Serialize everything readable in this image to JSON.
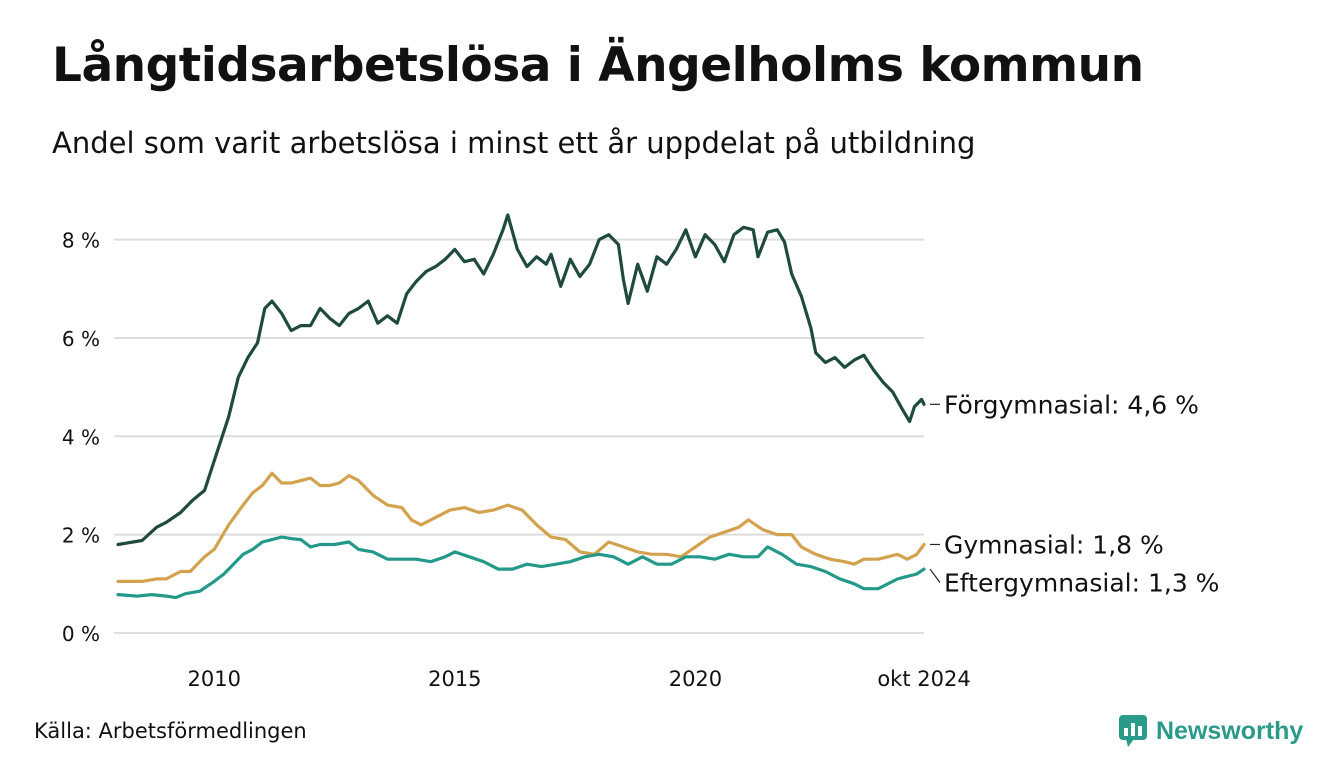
{
  "header": {
    "title": "Långtidsarbetslösa i Ängelholms kommun",
    "subtitle": "Andel som varit arbetslösa i minst ett år uppdelat på utbildning"
  },
  "footer": {
    "source": "Källa: Arbetsförmedlingen",
    "brand": "Newsworthy",
    "brand_color": "#2a9a8a",
    "brand_icon": "chart-speech-bubble-icon"
  },
  "chart_data": {
    "type": "line",
    "x_unit": "year (decimal, monthly data)",
    "xlim": [
      2008.0,
      2024.75
    ],
    "ylim": [
      0,
      8.5
    ],
    "y_ticks": [
      0,
      2,
      4,
      6,
      8
    ],
    "y_tick_labels": [
      "0 %",
      "2 %",
      "4 %",
      "6 %",
      "8 %"
    ],
    "x_ticks": [
      2010,
      2015,
      2020,
      2024.75
    ],
    "x_tick_labels": [
      "2010",
      "2015",
      "2020",
      "okt 2024"
    ],
    "grid": "horizontal",
    "legend": "end-labels",
    "series": [
      {
        "name": "Förgymnasial",
        "end_label": "Förgymnasial: 4,6 %",
        "color": "#1f4a3f",
        "points": [
          [
            2008.0,
            1.8
          ],
          [
            2008.5,
            1.88
          ],
          [
            2008.8,
            2.15
          ],
          [
            2009.0,
            2.25
          ],
          [
            2009.3,
            2.45
          ],
          [
            2009.55,
            2.7
          ],
          [
            2009.8,
            2.9
          ],
          [
            2010.0,
            3.5
          ],
          [
            2010.3,
            4.4
          ],
          [
            2010.5,
            5.2
          ],
          [
            2010.7,
            5.6
          ],
          [
            2010.9,
            5.9
          ],
          [
            2011.05,
            6.6
          ],
          [
            2011.2,
            6.75
          ],
          [
            2011.4,
            6.5
          ],
          [
            2011.6,
            6.15
          ],
          [
            2011.8,
            6.25
          ],
          [
            2012.0,
            6.25
          ],
          [
            2012.2,
            6.6
          ],
          [
            2012.4,
            6.4
          ],
          [
            2012.6,
            6.25
          ],
          [
            2012.8,
            6.5
          ],
          [
            2013.0,
            6.6
          ],
          [
            2013.2,
            6.75
          ],
          [
            2013.4,
            6.3
          ],
          [
            2013.6,
            6.45
          ],
          [
            2013.8,
            6.3
          ],
          [
            2014.0,
            6.9
          ],
          [
            2014.2,
            7.15
          ],
          [
            2014.4,
            7.35
          ],
          [
            2014.6,
            7.45
          ],
          [
            2014.8,
            7.6
          ],
          [
            2015.0,
            7.8
          ],
          [
            2015.2,
            7.55
          ],
          [
            2015.4,
            7.6
          ],
          [
            2015.6,
            7.3
          ],
          [
            2015.8,
            7.7
          ],
          [
            2016.0,
            8.2
          ],
          [
            2016.1,
            8.5
          ],
          [
            2016.3,
            7.8
          ],
          [
            2016.5,
            7.45
          ],
          [
            2016.7,
            7.65
          ],
          [
            2016.9,
            7.5
          ],
          [
            2017.0,
            7.7
          ],
          [
            2017.2,
            7.05
          ],
          [
            2017.4,
            7.6
          ],
          [
            2017.6,
            7.25
          ],
          [
            2017.8,
            7.5
          ],
          [
            2018.0,
            8.0
          ],
          [
            2018.2,
            8.1
          ],
          [
            2018.4,
            7.9
          ],
          [
            2018.5,
            7.2
          ],
          [
            2018.6,
            6.7
          ],
          [
            2018.8,
            7.5
          ],
          [
            2019.0,
            6.95
          ],
          [
            2019.2,
            7.65
          ],
          [
            2019.4,
            7.5
          ],
          [
            2019.6,
            7.8
          ],
          [
            2019.8,
            8.2
          ],
          [
            2020.0,
            7.65
          ],
          [
            2020.2,
            8.1
          ],
          [
            2020.4,
            7.9
          ],
          [
            2020.6,
            7.55
          ],
          [
            2020.8,
            8.1
          ],
          [
            2021.0,
            8.25
          ],
          [
            2021.2,
            8.2
          ],
          [
            2021.3,
            7.65
          ],
          [
            2021.5,
            8.15
          ],
          [
            2021.7,
            8.2
          ],
          [
            2021.85,
            7.95
          ],
          [
            2022.0,
            7.3
          ],
          [
            2022.2,
            6.85
          ],
          [
            2022.4,
            6.2
          ],
          [
            2022.5,
            5.7
          ],
          [
            2022.7,
            5.5
          ],
          [
            2022.9,
            5.6
          ],
          [
            2023.1,
            5.4
          ],
          [
            2023.3,
            5.55
          ],
          [
            2023.5,
            5.65
          ],
          [
            2023.7,
            5.35
          ],
          [
            2023.9,
            5.1
          ],
          [
            2024.1,
            4.9
          ],
          [
            2024.3,
            4.55
          ],
          [
            2024.45,
            4.3
          ],
          [
            2024.55,
            4.6
          ],
          [
            2024.7,
            4.75
          ],
          [
            2024.75,
            4.65
          ]
        ]
      },
      {
        "name": "Gymnasial",
        "end_label": "Gymnasial: 1,8 %",
        "color": "#d3a24e",
        "points": [
          [
            2008.0,
            1.05
          ],
          [
            2008.5,
            1.05
          ],
          [
            2008.8,
            1.1
          ],
          [
            2009.0,
            1.1
          ],
          [
            2009.3,
            1.25
          ],
          [
            2009.5,
            1.25
          ],
          [
            2009.8,
            1.55
          ],
          [
            2010.0,
            1.7
          ],
          [
            2010.3,
            2.2
          ],
          [
            2010.6,
            2.6
          ],
          [
            2010.8,
            2.85
          ],
          [
            2011.0,
            3.0
          ],
          [
            2011.2,
            3.25
          ],
          [
            2011.4,
            3.05
          ],
          [
            2011.6,
            3.05
          ],
          [
            2011.8,
            3.1
          ],
          [
            2012.0,
            3.15
          ],
          [
            2012.2,
            3.0
          ],
          [
            2012.4,
            3.0
          ],
          [
            2012.6,
            3.05
          ],
          [
            2012.8,
            3.2
          ],
          [
            2013.0,
            3.1
          ],
          [
            2013.3,
            2.8
          ],
          [
            2013.6,
            2.6
          ],
          [
            2013.9,
            2.55
          ],
          [
            2014.1,
            2.3
          ],
          [
            2014.3,
            2.2
          ],
          [
            2014.6,
            2.35
          ],
          [
            2014.9,
            2.5
          ],
          [
            2015.2,
            2.55
          ],
          [
            2015.5,
            2.45
          ],
          [
            2015.8,
            2.5
          ],
          [
            2016.1,
            2.6
          ],
          [
            2016.4,
            2.5
          ],
          [
            2016.7,
            2.2
          ],
          [
            2017.0,
            1.95
          ],
          [
            2017.3,
            1.9
          ],
          [
            2017.6,
            1.65
          ],
          [
            2017.9,
            1.6
          ],
          [
            2018.2,
            1.85
          ],
          [
            2018.5,
            1.75
          ],
          [
            2018.8,
            1.65
          ],
          [
            2019.1,
            1.6
          ],
          [
            2019.4,
            1.6
          ],
          [
            2019.7,
            1.55
          ],
          [
            2020.0,
            1.75
          ],
          [
            2020.3,
            1.95
          ],
          [
            2020.6,
            2.05
          ],
          [
            2020.9,
            2.15
          ],
          [
            2021.1,
            2.3
          ],
          [
            2021.4,
            2.1
          ],
          [
            2021.7,
            2.0
          ],
          [
            2022.0,
            2.0
          ],
          [
            2022.2,
            1.75
          ],
          [
            2022.5,
            1.6
          ],
          [
            2022.8,
            1.5
          ],
          [
            2023.1,
            1.45
          ],
          [
            2023.3,
            1.4
          ],
          [
            2023.5,
            1.5
          ],
          [
            2023.8,
            1.5
          ],
          [
            2024.0,
            1.55
          ],
          [
            2024.2,
            1.6
          ],
          [
            2024.4,
            1.5
          ],
          [
            2024.6,
            1.6
          ],
          [
            2024.75,
            1.8
          ]
        ]
      },
      {
        "name": "Eftergymnasial",
        "end_label": "Eftergymnasial: 1,3 %",
        "color": "#24998a",
        "points": [
          [
            2008.0,
            0.78
          ],
          [
            2008.4,
            0.75
          ],
          [
            2008.7,
            0.78
          ],
          [
            2009.0,
            0.75
          ],
          [
            2009.2,
            0.72
          ],
          [
            2009.4,
            0.8
          ],
          [
            2009.7,
            0.85
          ],
          [
            2010.0,
            1.05
          ],
          [
            2010.2,
            1.2
          ],
          [
            2010.4,
            1.4
          ],
          [
            2010.6,
            1.6
          ],
          [
            2010.8,
            1.7
          ],
          [
            2011.0,
            1.85
          ],
          [
            2011.2,
            1.9
          ],
          [
            2011.4,
            1.95
          ],
          [
            2011.6,
            1.92
          ],
          [
            2011.8,
            1.9
          ],
          [
            2012.0,
            1.75
          ],
          [
            2012.2,
            1.8
          ],
          [
            2012.5,
            1.8
          ],
          [
            2012.8,
            1.85
          ],
          [
            2013.0,
            1.7
          ],
          [
            2013.3,
            1.65
          ],
          [
            2013.6,
            1.5
          ],
          [
            2013.9,
            1.5
          ],
          [
            2014.2,
            1.5
          ],
          [
            2014.5,
            1.45
          ],
          [
            2014.8,
            1.55
          ],
          [
            2015.0,
            1.65
          ],
          [
            2015.3,
            1.55
          ],
          [
            2015.6,
            1.45
          ],
          [
            2015.9,
            1.3
          ],
          [
            2016.2,
            1.3
          ],
          [
            2016.5,
            1.4
          ],
          [
            2016.8,
            1.35
          ],
          [
            2017.1,
            1.4
          ],
          [
            2017.4,
            1.45
          ],
          [
            2017.7,
            1.55
          ],
          [
            2018.0,
            1.6
          ],
          [
            2018.3,
            1.55
          ],
          [
            2018.6,
            1.4
          ],
          [
            2018.9,
            1.55
          ],
          [
            2019.2,
            1.4
          ],
          [
            2019.5,
            1.4
          ],
          [
            2019.8,
            1.55
          ],
          [
            2020.1,
            1.55
          ],
          [
            2020.4,
            1.5
          ],
          [
            2020.7,
            1.6
          ],
          [
            2021.0,
            1.55
          ],
          [
            2021.3,
            1.55
          ],
          [
            2021.5,
            1.75
          ],
          [
            2021.8,
            1.6
          ],
          [
            2022.1,
            1.4
          ],
          [
            2022.4,
            1.35
          ],
          [
            2022.7,
            1.25
          ],
          [
            2023.0,
            1.1
          ],
          [
            2023.3,
            1.0
          ],
          [
            2023.5,
            0.9
          ],
          [
            2023.8,
            0.9
          ],
          [
            2024.0,
            1.0
          ],
          [
            2024.2,
            1.1
          ],
          [
            2024.4,
            1.15
          ],
          [
            2024.6,
            1.2
          ],
          [
            2024.75,
            1.3
          ]
        ]
      }
    ]
  }
}
